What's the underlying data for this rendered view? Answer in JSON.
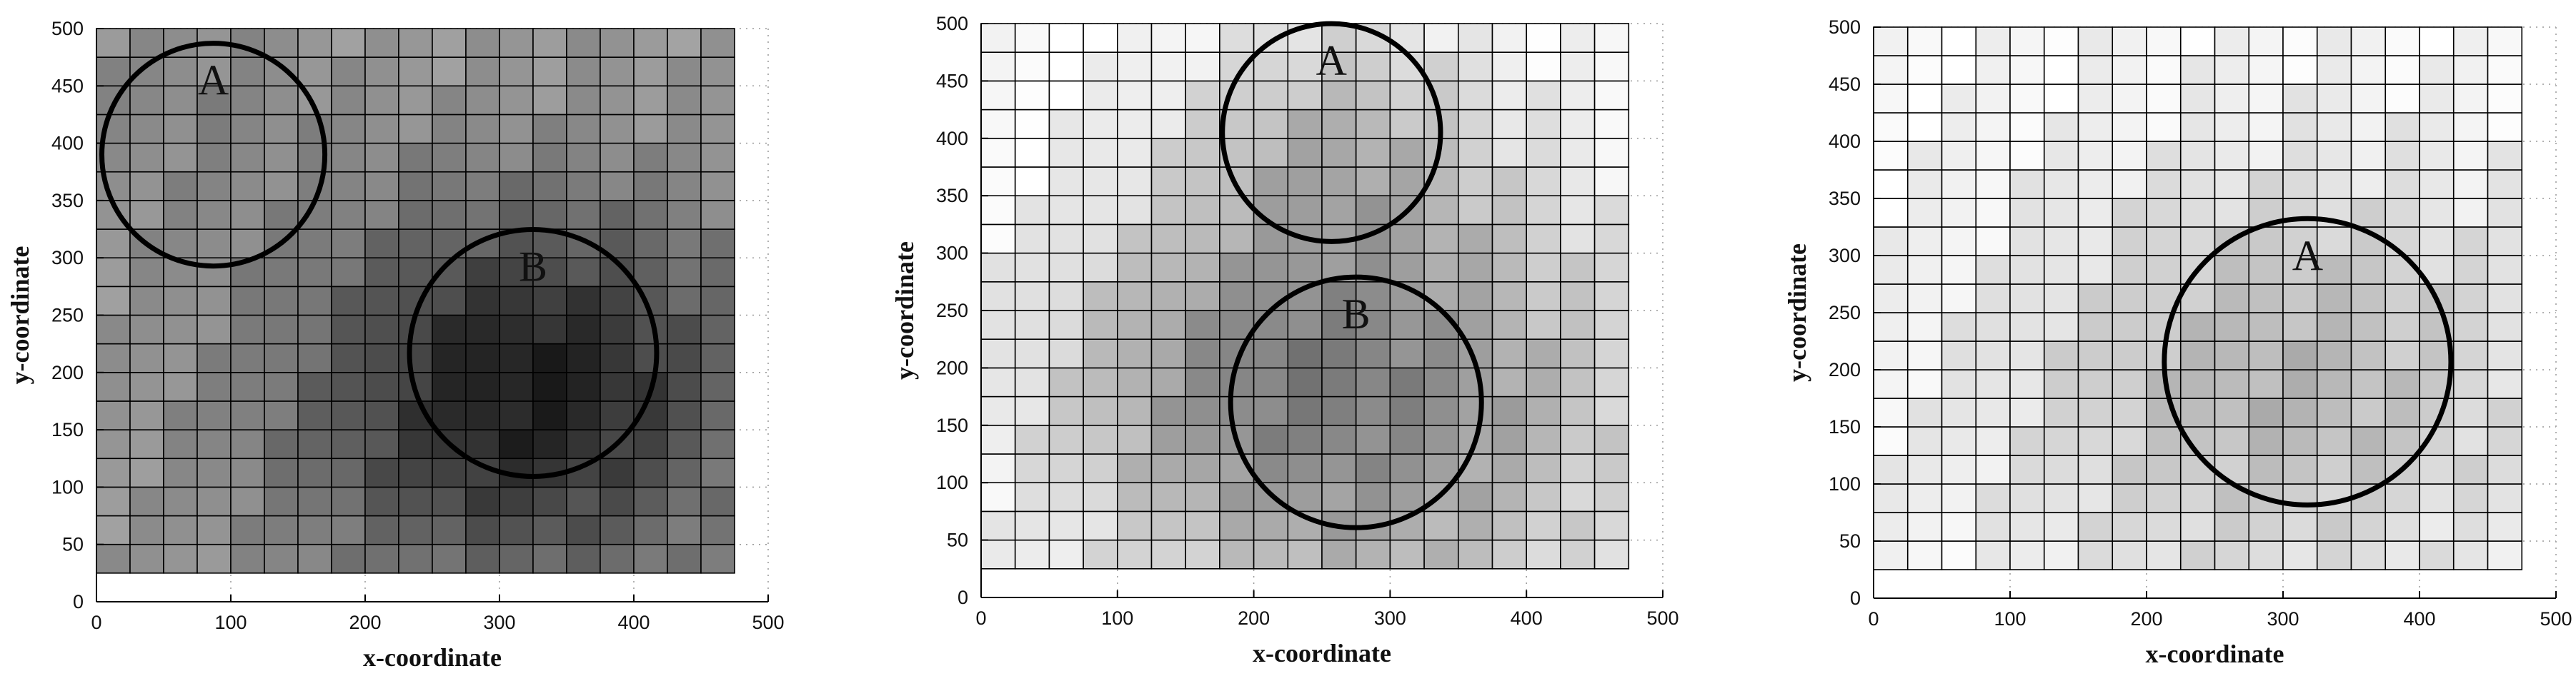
{
  "chart_data": [
    {
      "type": "heatmap",
      "xlabel": "x-coordinate",
      "ylabel": "y-coordinate",
      "xlim": [
        0,
        500
      ],
      "ylim": [
        0,
        500
      ],
      "xticks": [
        0,
        100,
        200,
        300,
        400,
        500
      ],
      "yticks": [
        0,
        50,
        100,
        150,
        200,
        250,
        300,
        350,
        400,
        450,
        500
      ],
      "grid": "dotted",
      "cell_x0": 0,
      "cell_y0": 25,
      "cell_size": 25,
      "grid_cols": 19,
      "grid_rows": 19,
      "base_shade": 154,
      "hotspots": [
        {
          "x": 70,
          "y": 420,
          "r": 80,
          "strength": 18
        },
        {
          "x": 330,
          "y": 190,
          "r": 110,
          "strength": 105
        },
        {
          "x": 250,
          "y": 150,
          "r": 130,
          "strength": 25
        }
      ],
      "circles": [
        {
          "label": "A",
          "cx": 87,
          "cy": 390,
          "r": 83
        },
        {
          "label": "B",
          "cx": 325,
          "cy": 217,
          "r": 92
        }
      ]
    },
    {
      "type": "heatmap",
      "xlabel": "x-coordinate",
      "ylabel": "y-coordinate",
      "xlim": [
        0,
        500
      ],
      "ylim": [
        0,
        500
      ],
      "xticks": [
        0,
        100,
        200,
        300,
        400,
        500
      ],
      "yticks": [
        0,
        50,
        100,
        150,
        200,
        250,
        300,
        350,
        400,
        450,
        500
      ],
      "grid": "dotted",
      "cell_x0": 0,
      "cell_y0": 25,
      "cell_size": 25,
      "grid_cols": 19,
      "grid_rows": 19,
      "base_shade": 255,
      "hotspots": [
        {
          "x": 260,
          "y": 400,
          "r": 75,
          "strength": 50
        },
        {
          "x": 275,
          "y": 175,
          "r": 140,
          "strength": 120
        },
        {
          "x": 160,
          "y": 200,
          "r": 80,
          "strength": 25
        }
      ],
      "circles": [
        {
          "label": "A",
          "cx": 257,
          "cy": 405,
          "r": 80
        },
        {
          "label": "B",
          "cx": 275,
          "cy": 170,
          "r": 92
        }
      ]
    },
    {
      "type": "heatmap",
      "xlabel": "x-coordinate",
      "ylabel": "y-coordinate",
      "xlim": [
        0,
        500
      ],
      "ylim": [
        0,
        500
      ],
      "xticks": [
        0,
        100,
        200,
        300,
        400,
        500
      ],
      "yticks": [
        0,
        50,
        100,
        150,
        200,
        250,
        300,
        350,
        400,
        450,
        500
      ],
      "grid": "dotted",
      "cell_x0": 0,
      "cell_y0": 25,
      "cell_size": 25,
      "grid_cols": 19,
      "grid_rows": 19,
      "base_shade": 248,
      "hotspots": [
        {
          "x": 320,
          "y": 200,
          "r": 120,
          "strength": 55
        },
        {
          "x": 200,
          "y": 170,
          "r": 130,
          "strength": 18
        }
      ],
      "circles": [
        {
          "label": "A",
          "cx": 318,
          "cy": 207,
          "r": 105
        }
      ]
    }
  ]
}
